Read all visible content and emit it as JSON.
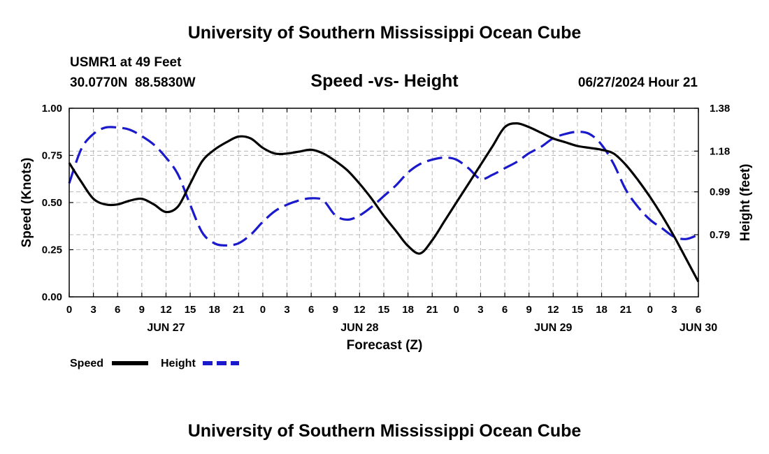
{
  "chart_data": {
    "type": "line",
    "title": "University of Southern Mississippi Ocean Cube",
    "footer_title": "University of Southern Mississippi Ocean Cube",
    "subtitle": "Speed -vs- Height",
    "station": "USMR1 at 49 Feet",
    "coords": "30.0770N  88.5830W",
    "timestamp": "06/27/2024 Hour 21",
    "xlabel": "Forecast (Z)",
    "ylabel_left": "Speed (Knots)",
    "ylabel_right": "Height (feet)",
    "x_range": [
      0,
      78
    ],
    "y_left_range": [
      0,
      1
    ],
    "y_right_range": [
      0.5,
      1.38
    ],
    "x_ticks": [
      0,
      3,
      6,
      9,
      12,
      15,
      18,
      21,
      24,
      27,
      30,
      33,
      36,
      39,
      42,
      45,
      48,
      51,
      54,
      57,
      60,
      63,
      66,
      69,
      72,
      75,
      78
    ],
    "x_tick_labels": [
      "0",
      "3",
      "6",
      "9",
      "12",
      "15",
      "18",
      "21",
      "0",
      "3",
      "6",
      "9",
      "12",
      "15",
      "18",
      "21",
      "0",
      "3",
      "6",
      "9",
      "12",
      "15",
      "18",
      "21",
      "0",
      "3",
      "6"
    ],
    "date_labels": [
      {
        "x": 12,
        "label": "JUN 27"
      },
      {
        "x": 36,
        "label": "JUN 28"
      },
      {
        "x": 60,
        "label": "JUN 29"
      },
      {
        "x": 78,
        "label": "JUN 30"
      }
    ],
    "y_left_ticks": [
      0,
      0.25,
      0.5,
      0.75,
      1.0
    ],
    "y_left_tick_labels": [
      "0.00",
      "0.25",
      "0.50",
      "0.75",
      "1.00"
    ],
    "y_right_ticks": [
      0.79,
      0.99,
      1.18,
      1.38
    ],
    "y_right_tick_labels": [
      "0.79",
      "0.99",
      "1.18",
      "1.38"
    ],
    "grid": true,
    "legend_position": "bottom-left",
    "series": [
      {
        "name": "Speed",
        "axis": "left",
        "color": "#000000",
        "style": "solid",
        "x": [
          0,
          1.5,
          3,
          4.5,
          6,
          7.5,
          9,
          10.5,
          12,
          13.5,
          15,
          16.5,
          18,
          19.5,
          21,
          22.5,
          24,
          25.5,
          27,
          28.5,
          30,
          31.5,
          33,
          34.5,
          36,
          37.5,
          39,
          40.5,
          42,
          43.5,
          45,
          46.5,
          48,
          49.5,
          51,
          52.5,
          54,
          55.5,
          57,
          58.5,
          60,
          61.5,
          63,
          64.5,
          66,
          67.5,
          69,
          70.5,
          72,
          73.5,
          75,
          76.5,
          78
        ],
        "values": [
          0.71,
          0.61,
          0.52,
          0.49,
          0.49,
          0.51,
          0.52,
          0.49,
          0.45,
          0.48,
          0.6,
          0.72,
          0.78,
          0.82,
          0.85,
          0.84,
          0.79,
          0.76,
          0.76,
          0.77,
          0.78,
          0.76,
          0.72,
          0.67,
          0.6,
          0.52,
          0.43,
          0.35,
          0.27,
          0.23,
          0.3,
          0.4,
          0.5,
          0.6,
          0.7,
          0.8,
          0.9,
          0.92,
          0.9,
          0.87,
          0.84,
          0.82,
          0.8,
          0.79,
          0.78,
          0.76,
          0.7,
          0.62,
          0.53,
          0.43,
          0.32,
          0.2,
          0.08
        ]
      },
      {
        "name": "Height",
        "axis": "right",
        "color": "#1a1acc",
        "style": "dashed",
        "x": [
          0,
          1.5,
          3,
          4.5,
          6,
          7.5,
          9,
          10.5,
          12,
          13.5,
          15,
          16.5,
          18,
          19.5,
          21,
          22.5,
          24,
          25.5,
          27,
          28.5,
          30,
          31.5,
          33,
          34.5,
          36,
          37.5,
          39,
          40.5,
          42,
          43.5,
          45,
          46.5,
          48,
          49.5,
          51,
          52.5,
          54,
          55.5,
          57,
          58.5,
          60,
          61.5,
          63,
          64.5,
          66,
          67.5,
          69,
          70.5,
          72,
          73.5,
          75,
          76.5,
          78
        ],
        "values": [
          1.03,
          1.19,
          1.26,
          1.29,
          1.29,
          1.28,
          1.25,
          1.21,
          1.15,
          1.07,
          0.93,
          0.8,
          0.75,
          0.74,
          0.75,
          0.79,
          0.85,
          0.9,
          0.93,
          0.95,
          0.96,
          0.95,
          0.88,
          0.86,
          0.88,
          0.92,
          0.97,
          1.02,
          1.08,
          1.12,
          1.14,
          1.15,
          1.14,
          1.1,
          1.05,
          1.07,
          1.1,
          1.13,
          1.17,
          1.2,
          1.24,
          1.26,
          1.27,
          1.26,
          1.21,
          1.12,
          1.0,
          0.92,
          0.86,
          0.82,
          0.78,
          0.77,
          0.79
        ]
      }
    ]
  }
}
